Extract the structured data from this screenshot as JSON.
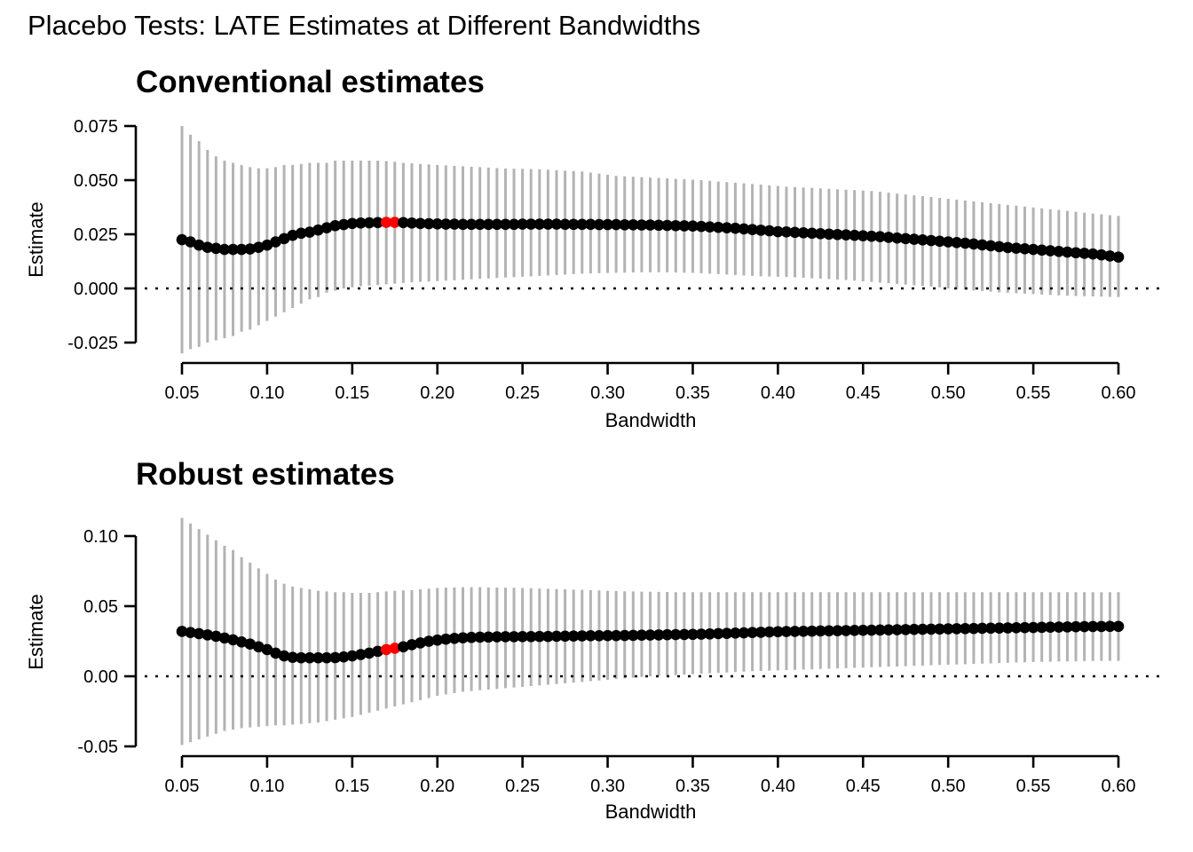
{
  "title": "Placebo Tests: LATE Estimates at Different Bandwidths",
  "colors": {
    "point": "#000000",
    "highlight": "#ff0000",
    "ci": "#b3b3b3"
  },
  "chart_data": [
    {
      "type": "scatter",
      "title": "Conventional estimates",
      "xlabel": "Bandwidth",
      "ylabel": "Estimate",
      "xlim": [
        0.05,
        0.6
      ],
      "ylim": [
        -0.025,
        0.075
      ],
      "xticks": [
        "0.05",
        "0.10",
        "0.15",
        "0.20",
        "0.25",
        "0.30",
        "0.35",
        "0.40",
        "0.45",
        "0.50",
        "0.55",
        "0.60"
      ],
      "yticks": [
        "-0.025",
        "0.000",
        "0.025",
        "0.050",
        "0.075"
      ],
      "reference_line": 0,
      "x_start": 0.05,
      "x_step": 0.005,
      "highlighted_x": [
        0.17,
        0.175
      ],
      "estimate": [
        0.0225,
        0.0215,
        0.02,
        0.019,
        0.0185,
        0.018,
        0.018,
        0.018,
        0.0182,
        0.019,
        0.02,
        0.0215,
        0.023,
        0.0245,
        0.0255,
        0.026,
        0.027,
        0.028,
        0.029,
        0.0295,
        0.03,
        0.0302,
        0.0303,
        0.0304,
        0.0305,
        0.0305,
        0.0304,
        0.0302,
        0.03,
        0.0299,
        0.0298,
        0.0297,
        0.0297,
        0.0296,
        0.0296,
        0.0296,
        0.0296,
        0.0296,
        0.0296,
        0.0296,
        0.0297,
        0.0297,
        0.0297,
        0.0297,
        0.0297,
        0.0296,
        0.0296,
        0.0296,
        0.0296,
        0.0295,
        0.0295,
        0.0295,
        0.0294,
        0.0294,
        0.0293,
        0.0293,
        0.0292,
        0.0291,
        0.029,
        0.0289,
        0.0288,
        0.0286,
        0.0284,
        0.0282,
        0.028,
        0.0278,
        0.0275,
        0.0272,
        0.0269,
        0.0266,
        0.0262,
        0.0261,
        0.0259,
        0.0257,
        0.0255,
        0.0253,
        0.0251,
        0.0249,
        0.0247,
        0.0245,
        0.0243,
        0.0241,
        0.0239,
        0.0236,
        0.0233,
        0.023,
        0.0227,
        0.0224,
        0.0221,
        0.0218,
        0.0215,
        0.0212,
        0.0209,
        0.0205,
        0.0201,
        0.0197,
        0.0193,
        0.0189,
        0.0186,
        0.0183,
        0.018,
        0.0177,
        0.0174,
        0.0171,
        0.0168,
        0.0165,
        0.0162,
        0.0159,
        0.0155,
        0.015,
        0.0145
      ],
      "ci_upper": [
        0.075,
        0.071,
        0.068,
        0.064,
        0.061,
        0.059,
        0.058,
        0.057,
        0.056,
        0.0555,
        0.0555,
        0.056,
        0.057,
        0.057,
        0.0575,
        0.058,
        0.058,
        0.058,
        0.059,
        0.059,
        0.059,
        0.059,
        0.059,
        0.059,
        0.0588,
        0.0585,
        0.058,
        0.0578,
        0.0575,
        0.0573,
        0.057,
        0.0568,
        0.0566,
        0.0564,
        0.0562,
        0.056,
        0.0558,
        0.0556,
        0.0554,
        0.0553,
        0.0552,
        0.0551,
        0.055,
        0.0548,
        0.0546,
        0.0544,
        0.0542,
        0.054,
        0.0535,
        0.053,
        0.0525,
        0.052,
        0.0518,
        0.0516,
        0.0514,
        0.0512,
        0.051,
        0.0508,
        0.0506,
        0.0504,
        0.0502,
        0.05,
        0.0497,
        0.0494,
        0.0491,
        0.0488,
        0.0485,
        0.0482,
        0.0479,
        0.0476,
        0.0473,
        0.047,
        0.0468,
        0.0466,
        0.0464,
        0.0462,
        0.046,
        0.0458,
        0.0456,
        0.0454,
        0.0452,
        0.045,
        0.0446,
        0.0442,
        0.0438,
        0.0434,
        0.043,
        0.0426,
        0.0422,
        0.0418,
        0.0414,
        0.041,
        0.0406,
        0.0402,
        0.0398,
        0.0394,
        0.039,
        0.0386,
        0.0382,
        0.0378,
        0.0374,
        0.037,
        0.0366,
        0.0362,
        0.0358,
        0.0354,
        0.035,
        0.0346,
        0.0342,
        0.0338,
        0.0335
      ],
      "ci_lower": [
        -0.03,
        -0.028,
        -0.027,
        -0.025,
        -0.024,
        -0.023,
        -0.022,
        -0.02,
        -0.019,
        -0.017,
        -0.015,
        -0.013,
        -0.011,
        -0.009,
        -0.007,
        -0.005,
        -0.004,
        -0.002,
        -0.001,
        0.0,
        0.0005,
        0.001,
        0.0013,
        0.0016,
        0.0019,
        0.0022,
        0.0025,
        0.0028,
        0.003,
        0.0032,
        0.0034,
        0.0036,
        0.0038,
        0.004,
        0.0042,
        0.0044,
        0.0046,
        0.0048,
        0.005,
        0.0052,
        0.0054,
        0.0056,
        0.0058,
        0.006,
        0.0062,
        0.0064,
        0.0066,
        0.0068,
        0.0069,
        0.007,
        0.0071,
        0.0072,
        0.0073,
        0.0074,
        0.0075,
        0.0075,
        0.0075,
        0.0075,
        0.0074,
        0.0073,
        0.0072,
        0.007,
        0.0068,
        0.0066,
        0.0064,
        0.0062,
        0.006,
        0.0058,
        0.0056,
        0.0055,
        0.0054,
        0.0053,
        0.0051,
        0.0049,
        0.0047,
        0.0045,
        0.0043,
        0.0041,
        0.0039,
        0.0036,
        0.0033,
        0.003,
        0.0027,
        0.0024,
        0.0021,
        0.0018,
        0.0015,
        0.0012,
        0.0009,
        0.0005,
        0.0,
        -0.0003,
        -0.0006,
        -0.0009,
        -0.0012,
        -0.0015,
        -0.0018,
        -0.002,
        -0.0022,
        -0.0024,
        -0.0026,
        -0.0028,
        -0.003,
        -0.0032,
        -0.0034,
        -0.0035,
        -0.0036,
        -0.0037,
        -0.0038,
        -0.0039,
        -0.004
      ]
    },
    {
      "type": "scatter",
      "title": "Robust estimates",
      "xlabel": "Bandwidth",
      "ylabel": "Estimate",
      "xlim": [
        0.05,
        0.6
      ],
      "ylim": [
        -0.05,
        0.1
      ],
      "xticks": [
        "0.05",
        "0.10",
        "0.15",
        "0.20",
        "0.25",
        "0.30",
        "0.35",
        "0.40",
        "0.45",
        "0.50",
        "0.55",
        "0.60"
      ],
      "yticks": [
        "-0.05",
        "0.00",
        "0.05",
        "0.10"
      ],
      "reference_line": 0,
      "x_start": 0.05,
      "x_step": 0.005,
      "highlighted_x": [
        0.17,
        0.175
      ],
      "estimate": [
        0.032,
        0.0312,
        0.0304,
        0.0295,
        0.0285,
        0.0273,
        0.026,
        0.0245,
        0.023,
        0.021,
        0.019,
        0.0165,
        0.0145,
        0.0135,
        0.0132,
        0.0132,
        0.0132,
        0.0132,
        0.0133,
        0.0138,
        0.0145,
        0.0155,
        0.0165,
        0.0178,
        0.019,
        0.02,
        0.021,
        0.0225,
        0.0238,
        0.025,
        0.0258,
        0.0265,
        0.027,
        0.0274,
        0.0277,
        0.0279,
        0.028,
        0.0281,
        0.0282,
        0.0282,
        0.0283,
        0.0283,
        0.0284,
        0.0284,
        0.0285,
        0.0286,
        0.0287,
        0.0288,
        0.0289,
        0.0289,
        0.029,
        0.029,
        0.0291,
        0.0292,
        0.0293,
        0.0294,
        0.0295,
        0.0296,
        0.0297,
        0.0298,
        0.0299,
        0.03,
        0.0302,
        0.0304,
        0.0306,
        0.0308,
        0.031,
        0.0312,
        0.0314,
        0.0316,
        0.0318,
        0.0319,
        0.032,
        0.0321,
        0.0322,
        0.0323,
        0.0324,
        0.0325,
        0.0326,
        0.0327,
        0.0328,
        0.0329,
        0.033,
        0.0331,
        0.0332,
        0.0333,
        0.0334,
        0.0335,
        0.0336,
        0.0337,
        0.0338,
        0.0339,
        0.034,
        0.0341,
        0.0342,
        0.0343,
        0.0344,
        0.0345,
        0.0346,
        0.0347,
        0.0348,
        0.0349,
        0.035,
        0.0351,
        0.0352,
        0.0353,
        0.0354,
        0.0355,
        0.0355,
        0.0356,
        0.0356
      ],
      "ci_upper": [
        0.113,
        0.109,
        0.105,
        0.101,
        0.097,
        0.093,
        0.09,
        0.085,
        0.081,
        0.077,
        0.073,
        0.069,
        0.066,
        0.064,
        0.063,
        0.062,
        0.061,
        0.0605,
        0.06,
        0.06,
        0.0595,
        0.0595,
        0.0595,
        0.06,
        0.0605,
        0.061,
        0.0612,
        0.0615,
        0.062,
        0.0625,
        0.063,
        0.0632,
        0.0634,
        0.0635,
        0.0635,
        0.0635,
        0.0634,
        0.0633,
        0.0632,
        0.0631,
        0.063,
        0.0628,
        0.0626,
        0.0624,
        0.0622,
        0.062,
        0.0618,
        0.0616,
        0.0614,
        0.0612,
        0.061,
        0.0608,
        0.0606,
        0.0605,
        0.0604,
        0.0603,
        0.0602,
        0.0601,
        0.06,
        0.06,
        0.06,
        0.06,
        0.06,
        0.06,
        0.06,
        0.06,
        0.06,
        0.06,
        0.06,
        0.06,
        0.06,
        0.06,
        0.06,
        0.06,
        0.06,
        0.06,
        0.06,
        0.06,
        0.06,
        0.06,
        0.06,
        0.06,
        0.06,
        0.06,
        0.06,
        0.06,
        0.06,
        0.06,
        0.06,
        0.06,
        0.06,
        0.06,
        0.06,
        0.06,
        0.06,
        0.06,
        0.06,
        0.06,
        0.06,
        0.06,
        0.06,
        0.06,
        0.06,
        0.06,
        0.06,
        0.06,
        0.06,
        0.06,
        0.06,
        0.06,
        0.06
      ],
      "ci_lower": [
        -0.049,
        -0.047,
        -0.045,
        -0.043,
        -0.041,
        -0.039,
        -0.038,
        -0.037,
        -0.0365,
        -0.036,
        -0.0355,
        -0.035,
        -0.035,
        -0.0345,
        -0.034,
        -0.0335,
        -0.033,
        -0.032,
        -0.031,
        -0.03,
        -0.029,
        -0.0275,
        -0.026,
        -0.0245,
        -0.023,
        -0.0215,
        -0.02,
        -0.0185,
        -0.017,
        -0.0155,
        -0.014,
        -0.013,
        -0.012,
        -0.011,
        -0.0105,
        -0.01,
        -0.0095,
        -0.009,
        -0.0085,
        -0.008,
        -0.0075,
        -0.007,
        -0.0065,
        -0.006,
        -0.0055,
        -0.005,
        -0.0045,
        -0.004,
        -0.0035,
        -0.003,
        -0.0025,
        -0.002,
        -0.0015,
        -0.001,
        -0.0005,
        0.0,
        0.0003,
        0.0006,
        0.0009,
        0.0012,
        0.0015,
        0.0018,
        0.0021,
        0.0024,
        0.0027,
        0.003,
        0.0033,
        0.0036,
        0.0038,
        0.004,
        0.0042,
        0.0044,
        0.0046,
        0.0048,
        0.005,
        0.0052,
        0.0054,
        0.0056,
        0.0058,
        0.006,
        0.0062,
        0.0064,
        0.0066,
        0.0068,
        0.007,
        0.0072,
        0.0074,
        0.0076,
        0.0078,
        0.008,
        0.0082,
        0.0084,
        0.0086,
        0.0088,
        0.009,
        0.0092,
        0.0094,
        0.0096,
        0.0098,
        0.01,
        0.0102,
        0.0103,
        0.0104,
        0.0105,
        0.0106,
        0.0107,
        0.0108,
        0.0109,
        0.011,
        0.011,
        0.011
      ]
    }
  ]
}
